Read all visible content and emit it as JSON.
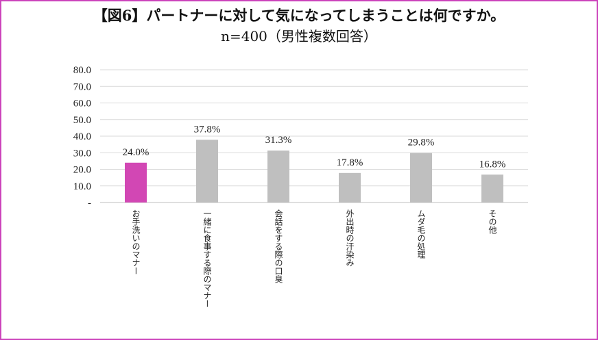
{
  "chart_data": {
    "type": "bar",
    "title": "【図6】パートナーに対して気になってしまうことは何ですか。",
    "subtitle": "n=400（男性複数回答）",
    "categories": [
      "お手洗いのマナー",
      "一緒に食事する際のマナー",
      "会話をする際の口臭",
      "外出時の汗染み",
      "ムダ毛の処理",
      "その他"
    ],
    "values": [
      24.0,
      37.8,
      31.3,
      17.8,
      29.8,
      16.8
    ],
    "value_labels": [
      "24.0%",
      "37.8%",
      "31.3%",
      "17.8%",
      "29.8%",
      "16.8%"
    ],
    "ylim": [
      0,
      80
    ],
    "yticks": [
      0,
      10,
      20,
      30,
      40,
      50,
      60,
      70,
      80
    ],
    "ytick_labels": [
      "-",
      "10.0",
      "20.0",
      "30.0",
      "40.0",
      "50.0",
      "60.0",
      "70.0",
      "80.0"
    ],
    "highlight_index": 0,
    "grid": true,
    "xlabel": "",
    "ylabel": ""
  },
  "colors": {
    "border": "#cc44bb",
    "highlight": "#d247b4",
    "bar": "#bfbfbf",
    "grid": "#d9d9d9"
  }
}
